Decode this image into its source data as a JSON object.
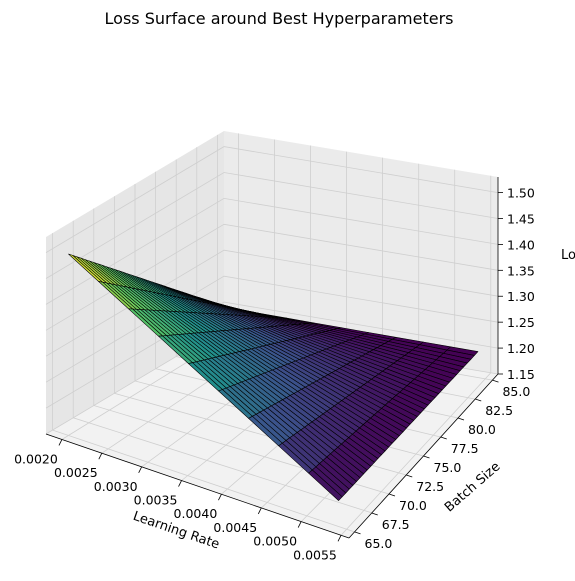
{
  "chart_data": {
    "type": "surface",
    "title": "Loss Surface around Best Hyperparameters",
    "xlabel": "Learning Rate",
    "ylabel": "Batch Size",
    "zlabel": "Lo",
    "x_ticks": [
      "0.0020",
      "0.0025",
      "0.0030",
      "0.0035",
      "0.0040",
      "0.0045",
      "0.0050",
      "0.0055"
    ],
    "y_ticks": [
      "65.0",
      "67.5",
      "70.0",
      "72.5",
      "75.0",
      "77.5",
      "80.0",
      "82.5",
      "85.0"
    ],
    "z_ticks": [
      "1.15",
      "1.20",
      "1.25",
      "1.30",
      "1.35",
      "1.40",
      "1.45",
      "1.50"
    ],
    "xlim": [
      0.0018,
      0.0056
    ],
    "ylim": [
      64.2,
      85.8
    ],
    "zlim": [
      1.15,
      1.53
    ],
    "x_range": [
      0.002,
      0.0054
    ],
    "y_range": [
      65.0,
      85.0
    ],
    "x_count": 10,
    "y_count": 40,
    "z_corners": {
      "x0_y0": 1.5,
      "x1_y0": 1.2,
      "x0_y1": 1.2,
      "x1_y1": 1.2
    },
    "colormap": "viridis",
    "colormap_stops": [
      "#440154",
      "#3b528b",
      "#21918c",
      "#5ec962",
      "#fde725"
    ],
    "edge_color": "#000000",
    "pane_color": "#f2f2f2",
    "grid": true
  }
}
